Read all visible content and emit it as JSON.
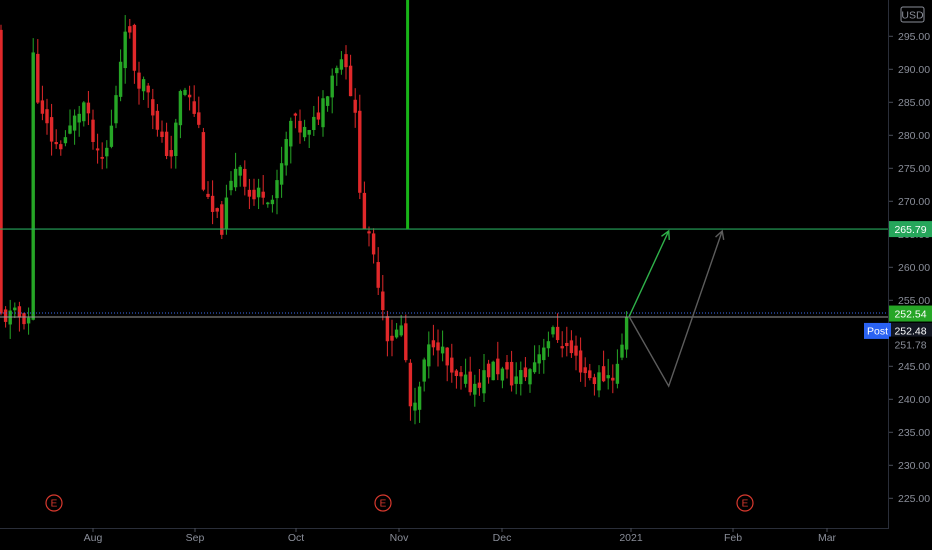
{
  "currency": "USD",
  "colors": {
    "background": "#000000",
    "up": "#26a626",
    "down": "#e0282a",
    "h_level_line": "#26a65b",
    "v_marker": "#18b418",
    "last_price_line": "#9a9a9a",
    "projection_up": "#2fb24a",
    "projection_alt": "#5c5c5c",
    "post_tag": "#2a62f2",
    "axis_text": "#8a8e99",
    "earnings": "#d9392e"
  },
  "chart_data": {
    "type": "candlestick",
    "ylim": [
      220.5,
      300.5
    ],
    "y_ticks": [
      225,
      230,
      235,
      240,
      245,
      250,
      255,
      260,
      265,
      270,
      275,
      280,
      285,
      290,
      295
    ],
    "x_ticks": [
      "Aug",
      "Sep",
      "Oct",
      "Nov",
      "Dec",
      "2021",
      "Feb",
      "Mar"
    ],
    "earnings_markers": [
      "E",
      "E",
      "E"
    ],
    "price_tags": {
      "level": "265.79",
      "last": "252.54",
      "post_label": "Post",
      "post": "252.48",
      "prev_close": "251.78"
    },
    "horizontal_level": 265.79,
    "last_price": 252.54,
    "post_price": 252.48,
    "prev_close": 251.78,
    "anchor_points": [
      {
        "date": "Jul 13",
        "close": 295
      },
      {
        "date": "Jul 16",
        "close": 283
      },
      {
        "date": "Jul 21",
        "close": 278
      },
      {
        "date": "Jul 24",
        "close": 280
      },
      {
        "date": "Jul 29",
        "close": 285
      },
      {
        "date": "Aug 03",
        "close": 275
      },
      {
        "date": "Aug 06",
        "close": 279
      },
      {
        "date": "Aug 11",
        "close": 298
      },
      {
        "date": "Aug 14",
        "close": 289
      },
      {
        "date": "Aug 18",
        "close": 287
      },
      {
        "date": "Aug 21",
        "close": 279
      },
      {
        "date": "Aug 25",
        "close": 277
      },
      {
        "date": "Aug 28",
        "close": 288
      },
      {
        "date": "Sep 02",
        "close": 282
      },
      {
        "date": "Sep 04",
        "close": 270
      },
      {
        "date": "Sep 09",
        "close": 266
      },
      {
        "date": "Sep 14",
        "close": 277
      },
      {
        "date": "Sep 18",
        "close": 270
      },
      {
        "date": "Sep 22",
        "close": 272
      },
      {
        "date": "Sep 25",
        "close": 270
      },
      {
        "date": "Sep 30",
        "close": 282
      },
      {
        "date": "Oct 05",
        "close": 280
      },
      {
        "date": "Oct 09",
        "close": 285
      },
      {
        "date": "Oct 13",
        "close": 291
      },
      {
        "date": "Oct 16",
        "close": 292
      },
      {
        "date": "Oct 19",
        "close": 282
      },
      {
        "date": "Oct 21",
        "close": 268
      },
      {
        "date": "Oct 26",
        "close": 258
      },
      {
        "date": "Oct 29",
        "close": 249
      },
      {
        "date": "Nov 02",
        "close": 251
      },
      {
        "date": "Nov 05",
        "close": 236
      },
      {
        "date": "Nov 09",
        "close": 246
      },
      {
        "date": "Nov 12",
        "close": 250
      },
      {
        "date": "Nov 17",
        "close": 243
      },
      {
        "date": "Nov 23",
        "close": 242
      },
      {
        "date": "Nov 30",
        "close": 245
      },
      {
        "date": "Dec 04",
        "close": 243
      },
      {
        "date": "Dec 09",
        "close": 244
      },
      {
        "date": "Dec 14",
        "close": 249
      },
      {
        "date": "Dec 17",
        "close": 250
      },
      {
        "date": "Dec 22",
        "close": 247
      },
      {
        "date": "Dec 28",
        "close": 243
      },
      {
        "date": "Jan 04",
        "close": 244
      },
      {
        "date": "Jan 08",
        "close": 252.54
      }
    ],
    "projection_primary": [
      {
        "date": "Jan 08",
        "price": 252.54
      },
      {
        "date": "Jan 20",
        "price": 265.5
      }
    ],
    "projection_alternate": [
      {
        "date": "Jan 08",
        "price": 252.54
      },
      {
        "date": "Jan 20",
        "price": 242
      },
      {
        "date": "Feb 05",
        "price": 265.5
      }
    ]
  }
}
